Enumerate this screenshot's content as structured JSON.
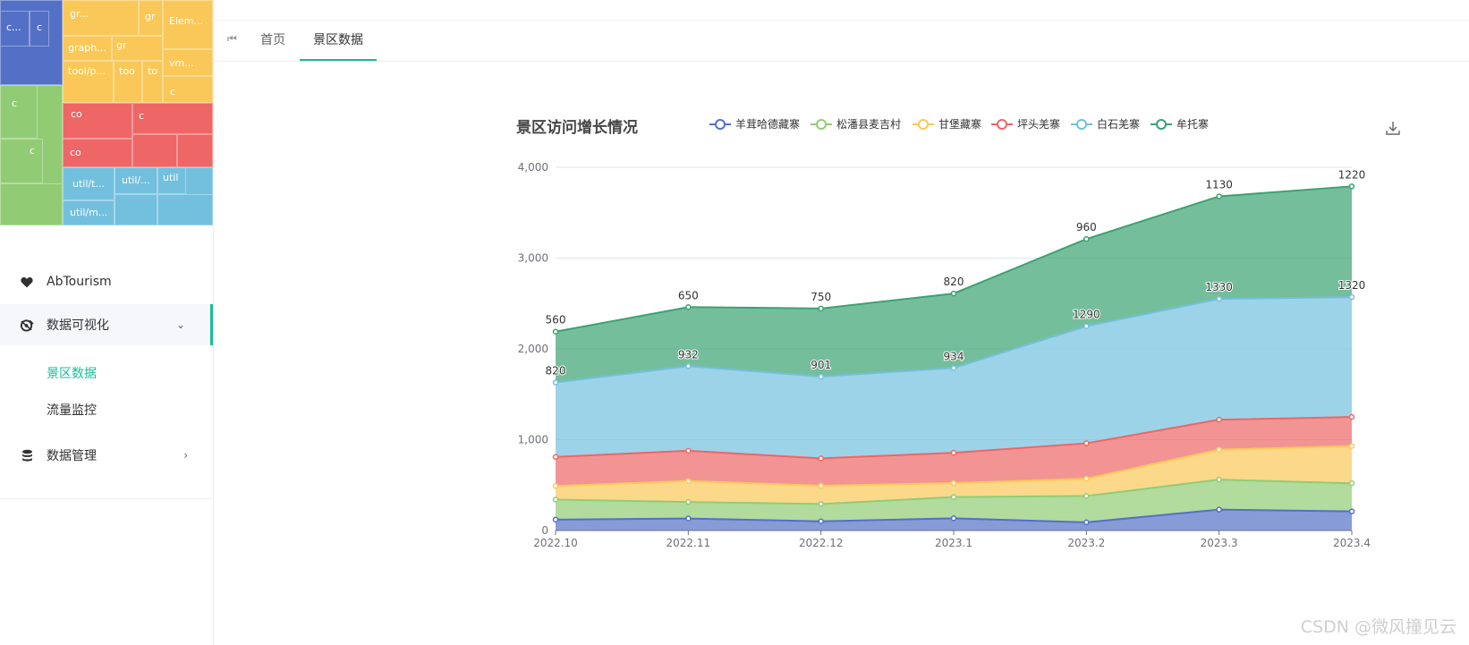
{
  "treemap": {
    "labels": [
      "c...",
      "c",
      "gr...",
      "gr",
      "Elem...",
      "graph...",
      "gr",
      "tool/p...",
      "too",
      "to",
      "vm...",
      "c",
      "c",
      "c",
      "co",
      "c",
      "co",
      "util/t...",
      "util/...",
      "util",
      "util/m..."
    ],
    "colors": {
      "blue": "#5470c6",
      "yellow": "#fac858",
      "green": "#91cc75",
      "red": "#ee6666",
      "cyan": "#73c0de"
    }
  },
  "sidebar": {
    "items": [
      {
        "label": "AbTourism",
        "icon": "heart-icon"
      },
      {
        "label": "数据可视化",
        "icon": "dashboard-icon"
      },
      {
        "label": "数据管理",
        "icon": "database-icon"
      }
    ],
    "sub_items": [
      "景区数据",
      "流量监控"
    ],
    "accent": "#1abc9c"
  },
  "tabs": [
    "首页",
    "景区数据"
  ],
  "chart_data": {
    "type": "area",
    "stacked": true,
    "title": "景区访问增长情况",
    "categories": [
      "2022.10",
      "2022.11",
      "2022.12",
      "2023.1",
      "2023.2",
      "2023.3",
      "2023.4"
    ],
    "ylim": [
      0,
      4000
    ],
    "yticks": [
      "0",
      "1,000",
      "2,000",
      "3,000",
      "4,000"
    ],
    "legend_position": "top",
    "series": [
      {
        "name": "羊茸哈德藏寨",
        "color": "#5470c6",
        "values": [
          120,
          132,
          101,
          134,
          90,
          230,
          210
        ],
        "labels": []
      },
      {
        "name": "松潘县麦吉村",
        "color": "#91cc75",
        "values": [
          220,
          182,
          191,
          234,
          290,
          330,
          310
        ],
        "labels": []
      },
      {
        "name": "甘堡藏寨",
        "color": "#fac858",
        "values": [
          150,
          232,
          201,
          154,
          190,
          330,
          410
        ],
        "labels": []
      },
      {
        "name": "坪头羌寨",
        "color": "#ee6666",
        "values": [
          320,
          332,
          301,
          334,
          390,
          330,
          320
        ],
        "labels": []
      },
      {
        "name": "白石羌寨",
        "color": "#73c0de",
        "values": [
          820,
          932,
          901,
          934,
          1290,
          1330,
          1320
        ],
        "labels": [
          "820",
          "932",
          "901",
          "934",
          "1290",
          "1330",
          "1320"
        ]
      },
      {
        "name": "牟托寨",
        "color": "#3ba272",
        "values": [
          560,
          650,
          750,
          820,
          960,
          1130,
          1220
        ],
        "labels": [
          "560",
          "650",
          "750",
          "820",
          "960",
          "1130",
          "1220"
        ]
      }
    ]
  },
  "download_icon": "download-icon",
  "watermark": "CSDN @微风撞见云"
}
